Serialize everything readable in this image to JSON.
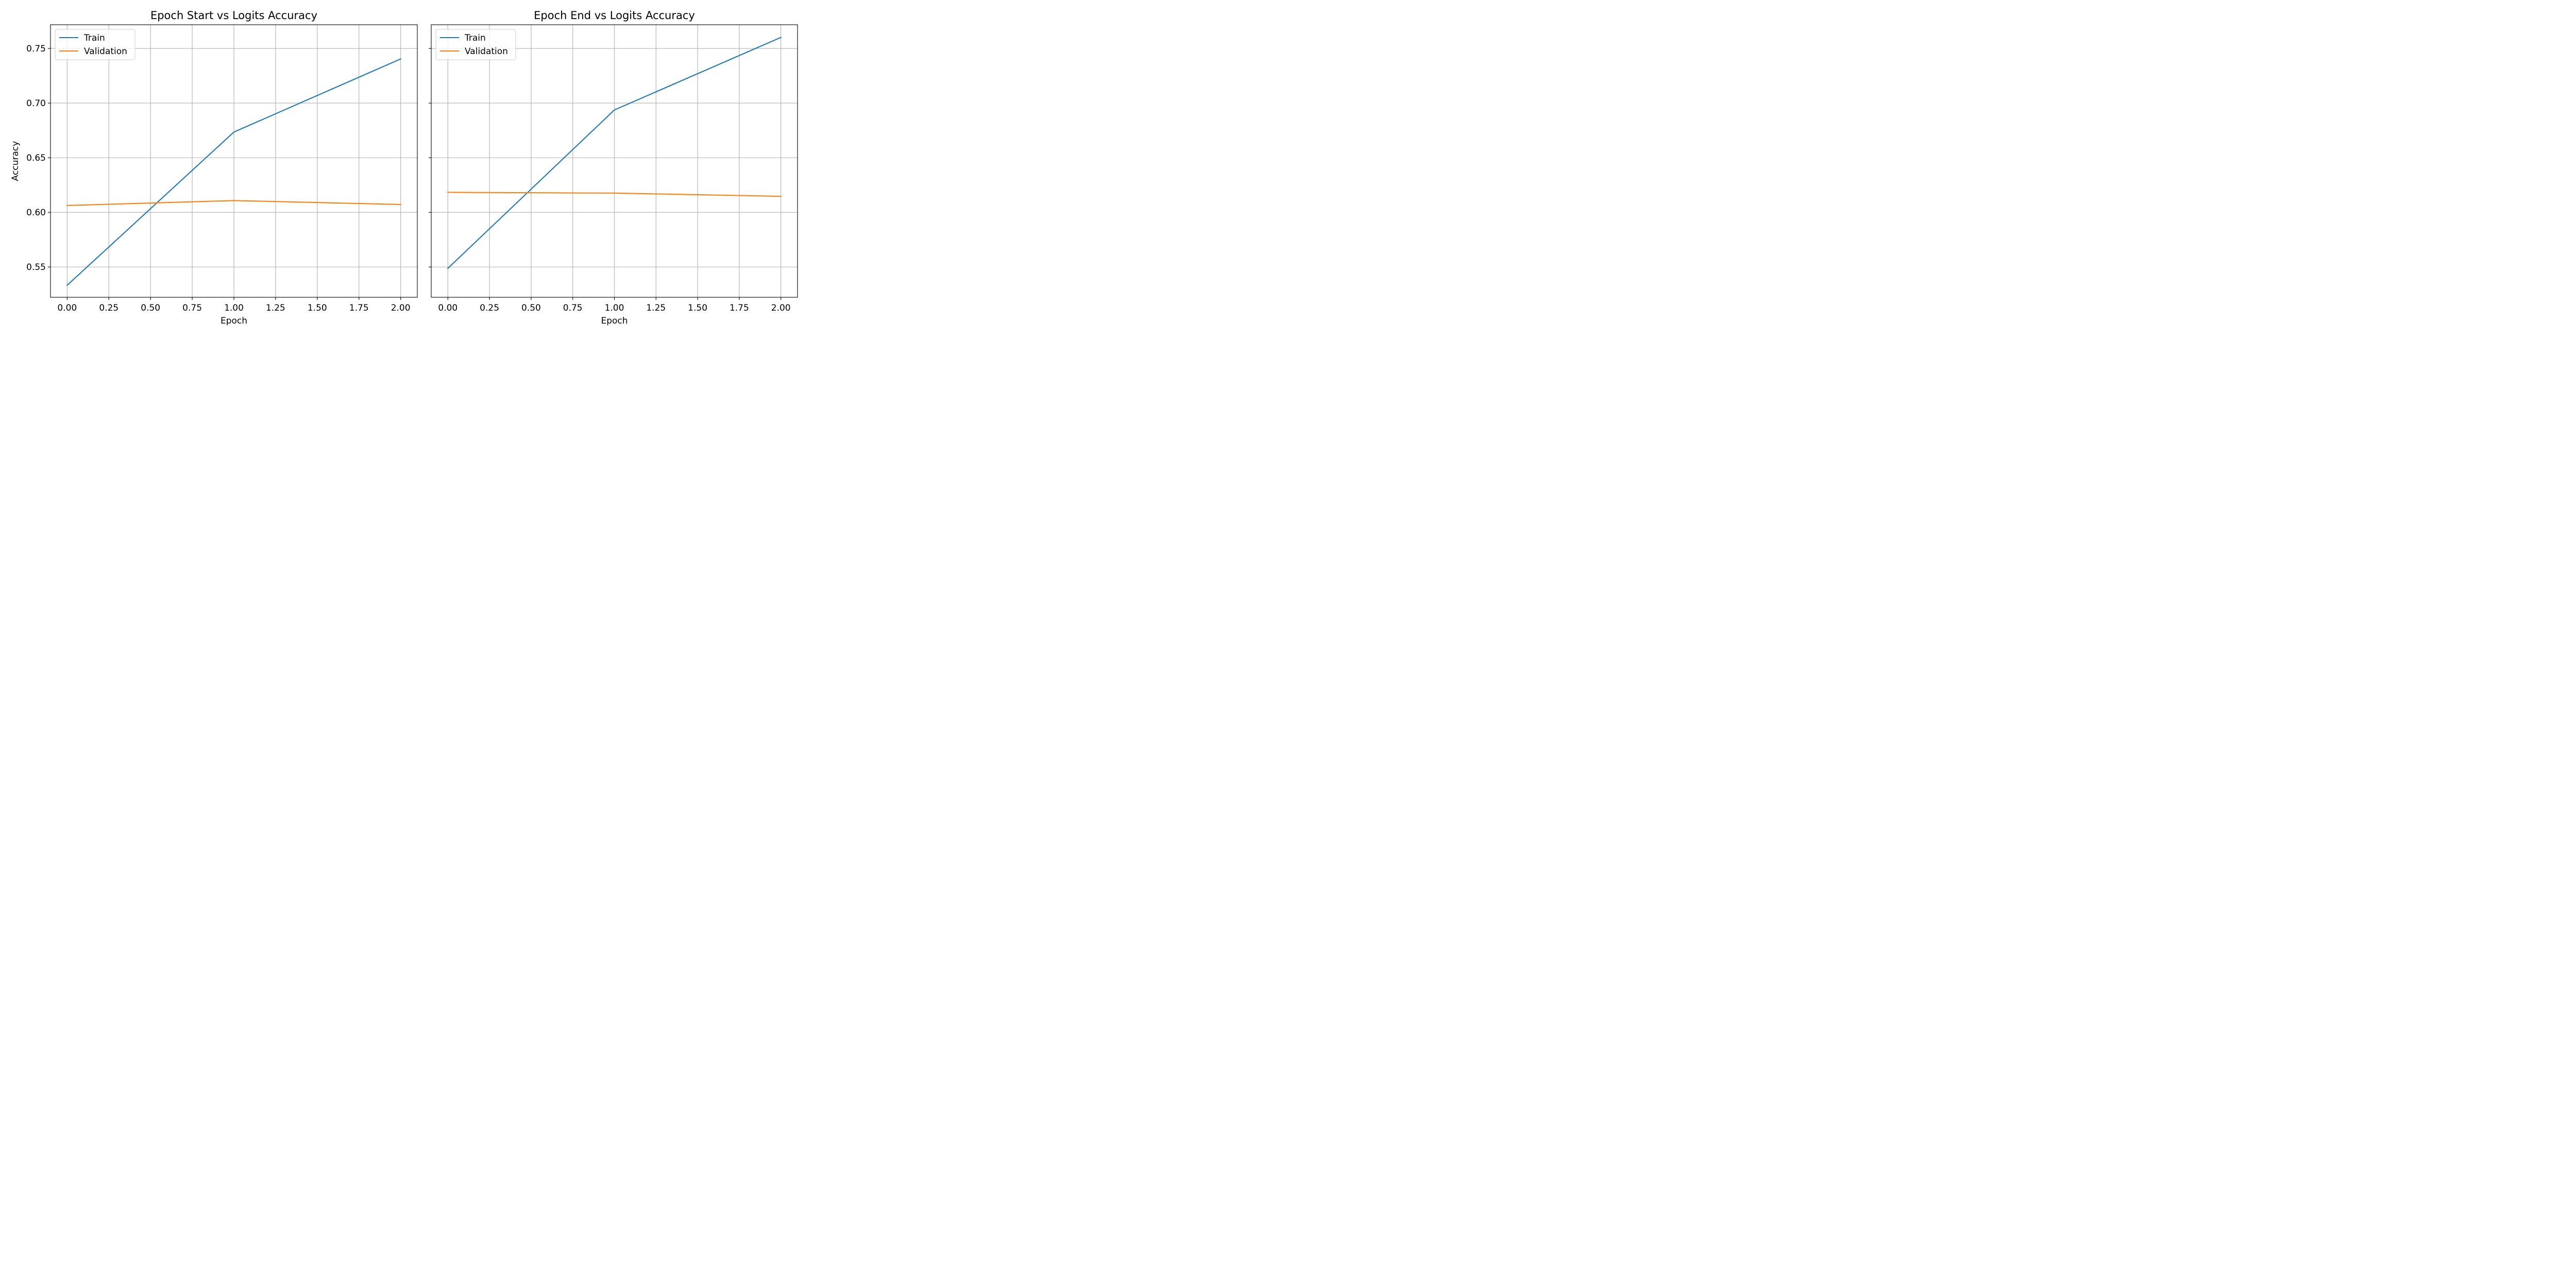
{
  "colors": {
    "train": "#1f77b4",
    "validation": "#ff7f0e",
    "grid": "#b0b0b0",
    "axes": "#000000"
  },
  "chart_data": [
    {
      "type": "line",
      "title": "Epoch Start vs Logits Accuracy",
      "xlabel": "Epoch",
      "ylabel": "Accuracy",
      "x": [
        0,
        1,
        2
      ],
      "xticks": [
        0.0,
        0.25,
        0.5,
        0.75,
        1.0,
        1.25,
        1.5,
        1.75,
        2.0
      ],
      "xtick_labels": [
        "0.00",
        "0.25",
        "0.50",
        "0.75",
        "1.00",
        "1.25",
        "1.50",
        "1.75",
        "2.00"
      ],
      "yticks": [
        0.55,
        0.6,
        0.65,
        0.7,
        0.75
      ],
      "ytick_labels": [
        "0.55",
        "0.60",
        "0.65",
        "0.70",
        "0.75"
      ],
      "xlim": [
        -0.1,
        2.1
      ],
      "ylim": [
        0.5223,
        0.7717
      ],
      "grid": true,
      "legend_position": "upper left",
      "series": [
        {
          "name": "Train",
          "values": [
            0.5333,
            0.6735,
            0.7404
          ]
        },
        {
          "name": "Validation",
          "values": [
            0.6063,
            0.6108,
            0.6072
          ]
        }
      ]
    },
    {
      "type": "line",
      "title": "Epoch End vs Logits Accuracy",
      "xlabel": "Epoch",
      "ylabel": "",
      "x": [
        0,
        1,
        2
      ],
      "xticks": [
        0.0,
        0.25,
        0.5,
        0.75,
        1.0,
        1.25,
        1.5,
        1.75,
        2.0
      ],
      "xtick_labels": [
        "0.00",
        "0.25",
        "0.50",
        "0.75",
        "1.00",
        "1.25",
        "1.50",
        "1.75",
        "2.00"
      ],
      "yticks": [
        0.55,
        0.6,
        0.65,
        0.7,
        0.75
      ],
      "ytick_labels": [],
      "xlim": [
        -0.1,
        2.1
      ],
      "ylim": [
        0.5223,
        0.7717
      ],
      "grid": true,
      "legend_position": "upper left",
      "series": [
        {
          "name": "Train",
          "values": [
            0.5488,
            0.6937,
            0.7601
          ]
        },
        {
          "name": "Validation",
          "values": [
            0.6183,
            0.6176,
            0.6147
          ]
        }
      ]
    }
  ]
}
